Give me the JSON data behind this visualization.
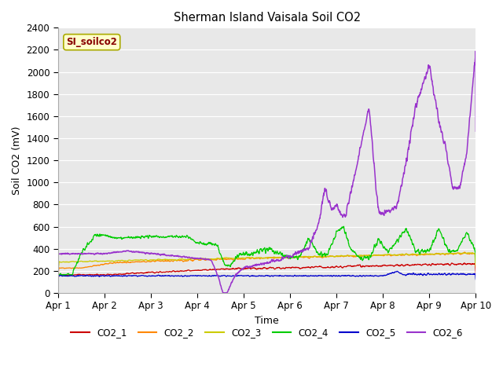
{
  "title": "Sherman Island Vaisala Soil CO2",
  "xlabel": "Time",
  "ylabel": "Soil CO2 (mV)",
  "ylim": [
    0,
    2400
  ],
  "yticks": [
    0,
    200,
    400,
    600,
    800,
    1000,
    1200,
    1400,
    1600,
    1800,
    2000,
    2200,
    2400
  ],
  "xlim_days": [
    0,
    9
  ],
  "x_tick_positions": [
    0,
    1,
    2,
    3,
    4,
    5,
    6,
    7,
    8,
    9
  ],
  "x_tick_labels": [
    "Apr 1",
    "Apr 2",
    "Apr 3",
    "Apr 4",
    "Apr 5",
    "Apr 6",
    "Apr 7",
    "Apr 8",
    "Apr 9",
    "Apr 10"
  ],
  "watermark_text": "SI_soilco2",
  "watermark_bg": "#ffffcc",
  "watermark_fg": "#880000",
  "background_color": "#e8e8e8",
  "series_colors": {
    "CO2_1": "#cc0000",
    "CO2_2": "#ff8800",
    "CO2_3": "#cccc00",
    "CO2_4": "#00cc00",
    "CO2_5": "#0000cc",
    "CO2_6": "#9933cc"
  },
  "legend_labels": [
    "CO2_1",
    "CO2_2",
    "CO2_3",
    "CO2_4",
    "CO2_5",
    "CO2_6"
  ]
}
